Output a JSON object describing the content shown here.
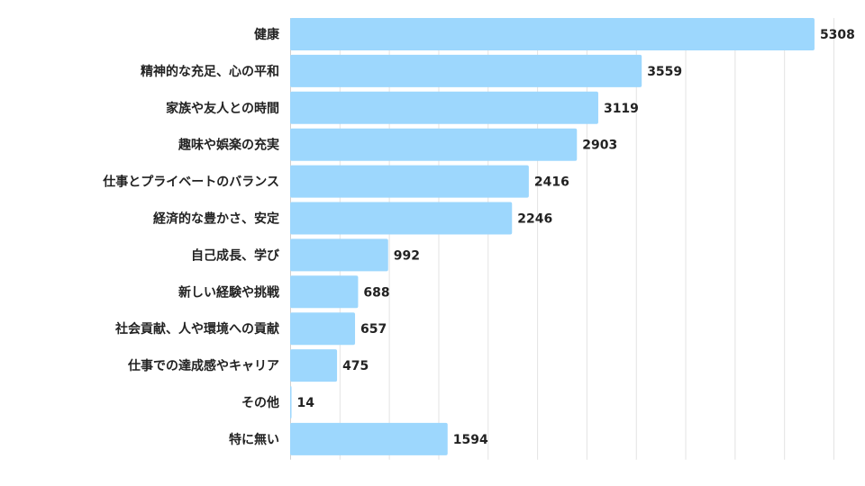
{
  "chart_data": {
    "type": "bar",
    "orientation": "horizontal",
    "title": "",
    "xlabel": "",
    "ylabel": "",
    "xlim": [
      0,
      5500
    ],
    "grid": true,
    "grid_step": 500,
    "bar_color": "#9dd7fd",
    "grid_color": "#e3e3e3",
    "categories": [
      "健康",
      "精神的な充足、心の平和",
      "家族や友人との時間",
      "趣味や娯楽の充実",
      "仕事とプライベートのバランス",
      "経済的な豊かさ、安定",
      "自己成長、学び",
      "新しい経験や挑戦",
      "社会貢献、人や環境への貢献",
      "仕事での達成感やキャリア",
      "その他",
      "特に無い"
    ],
    "values": [
      5308,
      3559,
      3119,
      2903,
      2416,
      2246,
      992,
      688,
      657,
      475,
      14,
      1594
    ]
  }
}
